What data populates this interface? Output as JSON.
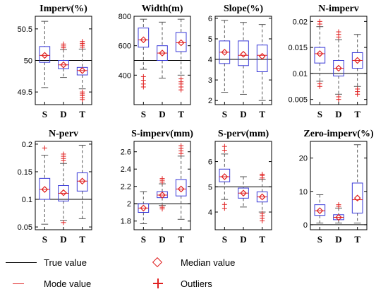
{
  "legend": {
    "true_value": "True value",
    "median_value": "Median value",
    "mode_value": "Mode value",
    "outliers": "Outliers"
  },
  "colors": {
    "box": "#3a3ad8",
    "marker": "#e02020",
    "whisker": "#555555",
    "true_line": "#000000"
  },
  "chart_data": [
    {
      "type": "box",
      "title": "Imperv(%)",
      "categories": [
        "S",
        "D",
        "T"
      ],
      "ylim": [
        49.3,
        50.7
      ],
      "yticks": [
        49.5,
        50,
        50.5
      ],
      "true_value": 50,
      "boxes": [
        {
          "low": 49.57,
          "q1": 49.97,
          "mode": 50.08,
          "q3": 50.22,
          "high": 50.62,
          "median": 50.08,
          "outliers": []
        },
        {
          "low": 49.73,
          "q1": 49.87,
          "mode": 49.93,
          "q3": 50.0,
          "high": 50.17,
          "median": 49.93,
          "outliers": [
            50.2,
            50.23,
            50.26
          ]
        },
        {
          "low": 49.55,
          "q1": 49.77,
          "mode": 49.84,
          "q3": 49.89,
          "high": 50.18,
          "median": 49.84,
          "outliers": [
            50.21,
            50.24,
            50.27,
            50.3,
            49.5,
            49.47,
            49.44,
            49.41,
            49.38
          ]
        }
      ]
    },
    {
      "type": "box",
      "title": "Width(m)",
      "categories": [
        "S",
        "D",
        "T"
      ],
      "ylim": [
        200,
        800
      ],
      "yticks": [
        400,
        600,
        800
      ],
      "true_value": 500,
      "boxes": [
        {
          "low": 440,
          "q1": 590,
          "mode": 640,
          "q3": 720,
          "high": 780,
          "median": 640,
          "outliers": [
            390,
            365,
            340,
            320
          ]
        },
        {
          "low": 380,
          "q1": 500,
          "mode": 550,
          "q3": 600,
          "high": 760,
          "median": 550,
          "outliers": []
        },
        {
          "low": 400,
          "q1": 560,
          "mode": 620,
          "q3": 690,
          "high": 780,
          "median": 620,
          "outliers": [
            375,
            355,
            340,
            320,
            300
          ]
        }
      ]
    },
    {
      "type": "box",
      "title": "Slope(%)",
      "categories": [
        "S",
        "D",
        "T"
      ],
      "ylim": [
        1.8,
        6.1
      ],
      "yticks": [
        2,
        3,
        4,
        5,
        6
      ],
      "true_value": 4,
      "boxes": [
        {
          "low": 2.4,
          "q1": 3.8,
          "mode": 4.35,
          "q3": 4.9,
          "high": 5.9,
          "median": 4.35,
          "outliers": []
        },
        {
          "low": 2.3,
          "q1": 3.7,
          "mode": 4.2,
          "q3": 4.9,
          "high": 5.8,
          "median": 4.25,
          "outliers": []
        },
        {
          "low": 2.0,
          "q1": 3.4,
          "mode": 4.2,
          "q3": 4.7,
          "high": 5.7,
          "median": 4.15,
          "outliers": []
        }
      ]
    },
    {
      "type": "box",
      "title": "N-imperv",
      "categories": [
        "S",
        "D",
        "T"
      ],
      "ylim": [
        0.004,
        0.021
      ],
      "yticks": [
        0.005,
        0.01,
        0.015,
        0.02
      ],
      "true_value": 0.01,
      "boxes": [
        {
          "low": 0.0085,
          "q1": 0.012,
          "mode": 0.0138,
          "q3": 0.015,
          "high": 0.019,
          "median": 0.0138,
          "outliers": [
            0.02,
            0.0195,
            0.008,
            0.0075
          ]
        },
        {
          "low": 0.006,
          "q1": 0.0095,
          "mode": 0.011,
          "q3": 0.0125,
          "high": 0.0165,
          "median": 0.011,
          "outliers": [
            0.017,
            0.0175,
            0.018,
            0.0055,
            0.005
          ]
        },
        {
          "low": 0.0075,
          "q1": 0.011,
          "mode": 0.0125,
          "q3": 0.014,
          "high": 0.0175,
          "median": 0.0125,
          "outliers": [
            0.007,
            0.0065,
            0.006
          ]
        }
      ]
    },
    {
      "type": "box",
      "title": "N-perv",
      "categories": [
        "S",
        "D",
        "T"
      ],
      "ylim": [
        0.045,
        0.205
      ],
      "yticks": [
        0.05,
        0.1,
        0.15,
        0.2
      ],
      "true_value": 0.1,
      "boxes": [
        {
          "low": 0.055,
          "q1": 0.1,
          "mode": 0.118,
          "q3": 0.138,
          "high": 0.18,
          "median": 0.118,
          "outliers": [
            0.193
          ]
        },
        {
          "low": 0.062,
          "q1": 0.097,
          "mode": 0.111,
          "q3": 0.125,
          "high": 0.165,
          "median": 0.112,
          "outliers": [
            0.17,
            0.174,
            0.178,
            0.182,
            0.058
          ]
        },
        {
          "low": 0.065,
          "q1": 0.115,
          "mode": 0.133,
          "q3": 0.148,
          "high": 0.198,
          "median": 0.133,
          "outliers": []
        }
      ]
    },
    {
      "type": "box",
      "title": "S-imperv(mm)",
      "categories": [
        "S",
        "D",
        "T"
      ],
      "ylim": [
        1.7,
        2.72
      ],
      "yticks": [
        1.8,
        2,
        2.2,
        2.4,
        2.6
      ],
      "true_value": 2,
      "boxes": [
        {
          "low": 1.77,
          "q1": 1.9,
          "mode": 1.95,
          "q3": 2.0,
          "high": 2.14,
          "median": 1.95,
          "outliers": []
        },
        {
          "low": 1.98,
          "q1": 2.07,
          "mode": 2.1,
          "q3": 2.14,
          "high": 2.23,
          "median": 2.1,
          "outliers": [
            2.25,
            2.27,
            2.29,
            1.96,
            1.94
          ]
        },
        {
          "low": 1.82,
          "q1": 2.09,
          "mode": 2.17,
          "q3": 2.28,
          "high": 2.55,
          "median": 2.17,
          "outliers": [
            2.58,
            2.61,
            2.64,
            2.67
          ]
        }
      ]
    },
    {
      "type": "box",
      "title": "S-perv(mm)",
      "categories": [
        "S",
        "D",
        "T"
      ],
      "ylim": [
        3.3,
        6.8
      ],
      "yticks": [
        4,
        5,
        6
      ],
      "true_value": 5,
      "boxes": [
        {
          "low": 4.5,
          "q1": 5.2,
          "mode": 5.4,
          "q3": 5.7,
          "high": 6.3,
          "median": 5.4,
          "outliers": [
            6.45,
            6.6,
            4.3,
            4.15
          ]
        },
        {
          "low": 4.2,
          "q1": 4.55,
          "mode": 4.75,
          "q3": 4.95,
          "high": 5.4,
          "median": 4.75,
          "outliers": []
        },
        {
          "low": 4.0,
          "q1": 4.4,
          "mode": 4.6,
          "q3": 4.8,
          "high": 5.3,
          "median": 4.6,
          "outliers": [
            5.35,
            5.45,
            5.5,
            3.95,
            3.85,
            3.75,
            3.65
          ]
        }
      ]
    },
    {
      "type": "box",
      "title": "Zero-imperv(%)",
      "categories": [
        "S",
        "D",
        "T"
      ],
      "ylim": [
        -1.5,
        25
      ],
      "yticks": [
        0,
        10,
        20
      ],
      "true_value": 0,
      "boxes": [
        {
          "low": 0.5,
          "q1": 2.8,
          "mode": 4.2,
          "q3": 6,
          "high": 9,
          "median": 4.2,
          "outliers": []
        },
        {
          "low": 0.5,
          "q1": 1.5,
          "mode": 2.2,
          "q3": 3,
          "high": 5,
          "median": 2.2,
          "outliers": [
            5.5,
            6
          ]
        },
        {
          "low": 0.5,
          "q1": 3.5,
          "mode": 7.5,
          "q3": 12.5,
          "high": 24,
          "median": 8,
          "outliers": []
        }
      ]
    }
  ]
}
